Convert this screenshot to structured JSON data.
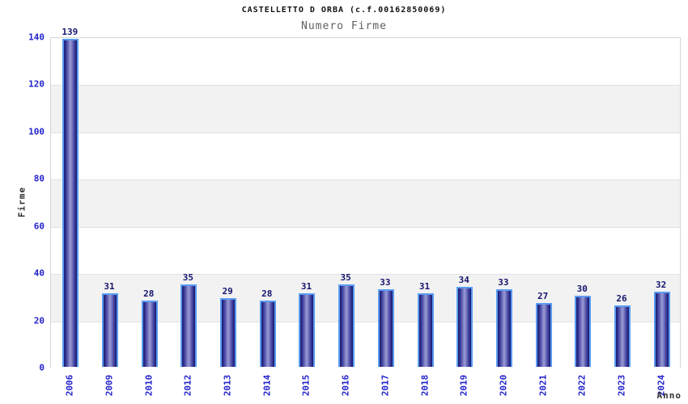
{
  "header": {
    "title": "CASTELLETTO D ORBA (c.f.00162850069)",
    "subtitle": "Numero Firme"
  },
  "colors": {
    "tick_label": "#2323cc",
    "value_label": "#15156e",
    "bar_border": "#5a9cf0",
    "bar_edge_dark": "#17176b",
    "bar_mid": "#3d3d9d",
    "bar_center_light": "#9c9cd6",
    "band_gray": "#f2f2f2",
    "band_white": "#ffffff",
    "gridline": "#e2e2e2",
    "plot_border": "#d6d6d6",
    "axis_title": "#303030",
    "title_color": "#111111",
    "subtitle_color": "#606060"
  },
  "chart_data": {
    "type": "bar",
    "title": "CASTELLETTO D ORBA (c.f.00162850069)",
    "subtitle": "Numero Firme",
    "categories": [
      "2006",
      "2009",
      "2010",
      "2012",
      "2013",
      "2014",
      "2015",
      "2016",
      "2017",
      "2018",
      "2019",
      "2020",
      "2021",
      "2022",
      "2023",
      "2024"
    ],
    "values": [
      139,
      31,
      28,
      35,
      29,
      28,
      31,
      35,
      33,
      31,
      34,
      33,
      27,
      30,
      26,
      32
    ],
    "xlabel": "Anno",
    "ylabel": "Firme",
    "ylim": [
      0,
      140
    ],
    "ytick_step": 20,
    "yticks": [
      0,
      20,
      40,
      60,
      80,
      100,
      120,
      140
    ],
    "grid": true,
    "legend_position": "none",
    "value_labels_shown": true,
    "alternating_bands": true
  }
}
